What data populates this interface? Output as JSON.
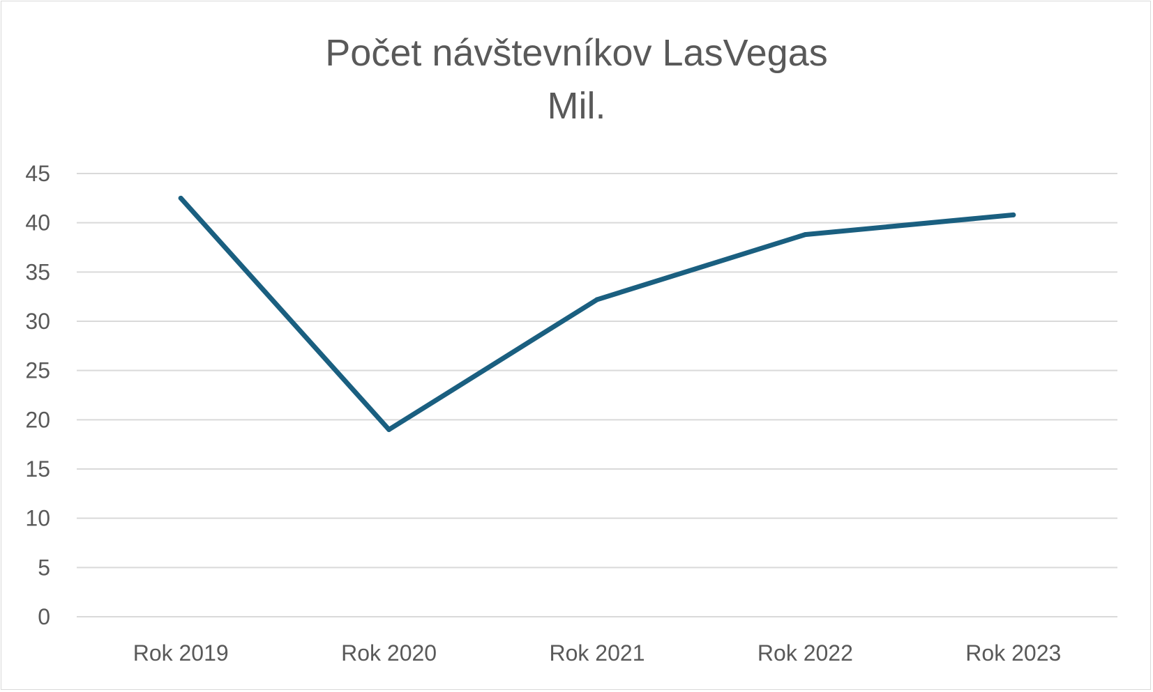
{
  "chart_data": {
    "type": "line",
    "title": "Počet návštevníkov LasVegas",
    "subtitle": "Mil.",
    "xlabel": "",
    "ylabel": "",
    "categories": [
      "Rok 2019",
      "Rok 2020",
      "Rok 2021",
      "Rok 2022",
      "Rok 2023"
    ],
    "series": [
      {
        "values": [
          42.5,
          19.0,
          32.2,
          38.8,
          40.8
        ],
        "color": "#1a5f80"
      }
    ],
    "ylim": [
      0,
      45
    ],
    "yticks": [
      "0",
      "5",
      "10",
      "15",
      "20",
      "25",
      "30",
      "35",
      "40",
      "45"
    ],
    "grid": true,
    "legend": "none",
    "colors": {
      "gridline": "#d9d9d9",
      "text": "#595959",
      "line": "#1a5f80"
    }
  }
}
